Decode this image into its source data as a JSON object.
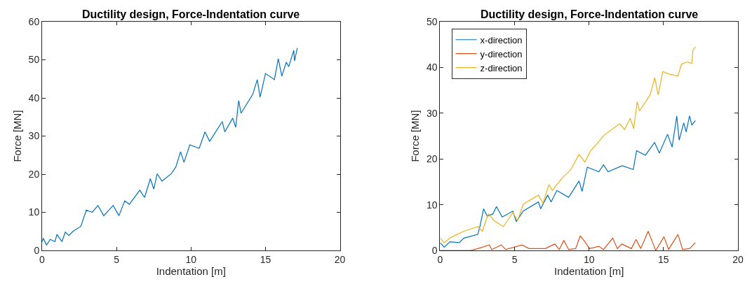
{
  "chart_data": [
    {
      "type": "line",
      "title": "Ductility design, Force-Indentation curve",
      "xlabel": "Indentation [m]",
      "ylabel": "Force [MN]",
      "xlim": [
        0,
        20
      ],
      "ylim": [
        0,
        60
      ],
      "xticks": [
        0,
        5,
        10,
        15,
        20
      ],
      "yticks": [
        0,
        10,
        20,
        30,
        40,
        50,
        60
      ],
      "legend": false,
      "series": [
        {
          "color": "#0072bd",
          "x": [
            0,
            0.08,
            0.3,
            0.55,
            0.86,
            1.0,
            1.33,
            1.56,
            1.8,
            2.1,
            2.6,
            2.97,
            3.36,
            3.75,
            4.14,
            4.77,
            5.16,
            5.55,
            5.86,
            6.56,
            6.88,
            7.27,
            7.5,
            7.73,
            8.05,
            8.67,
            8.98,
            9.3,
            9.53,
            9.92,
            10.55,
            10.94,
            11.25,
            12.1,
            12.27,
            12.8,
            13.0,
            13.2,
            13.36,
            14.14,
            14.45,
            14.64,
            15.0,
            15.6,
            15.86,
            16.1,
            16.4,
            16.56,
            16.9,
            16.95,
            17.14
          ],
          "values": [
            2.3,
            3.2,
            1.4,
            2.9,
            2.3,
            4.2,
            2.3,
            4.8,
            3.9,
            5.1,
            6.3,
            10.6,
            10.0,
            11.8,
            9.1,
            11.8,
            9.1,
            13.0,
            12.1,
            15.8,
            13.9,
            18.8,
            16.1,
            20.1,
            18.2,
            20.1,
            21.9,
            25.9,
            23.1,
            27.7,
            26.8,
            31.1,
            28.6,
            33.8,
            31.1,
            34.7,
            32.3,
            39.3,
            36.0,
            40.9,
            44.8,
            40.2,
            46.4,
            44.8,
            50.3,
            45.7,
            49.4,
            48.2,
            52.5,
            49.7,
            53.1
          ]
        }
      ]
    },
    {
      "type": "line",
      "title": "Ductility design, Force-Indentation curve",
      "xlabel": "Indentation [m]",
      "ylabel": "Force [MN]",
      "xlim": [
        0,
        20
      ],
      "ylim": [
        0,
        50
      ],
      "xticks": [
        0,
        5,
        10,
        15,
        20
      ],
      "yticks": [
        0,
        10,
        20,
        30,
        40,
        50
      ],
      "legend": "top left",
      "series": [
        {
          "name": "x-direction",
          "color": "#0072bd",
          "x": [
            0,
            0.27,
            0.66,
            1.28,
            1.6,
            2.53,
            2.69,
            2.92,
            3.16,
            3.55,
            3.78,
            4.17,
            4.88,
            5.11,
            5.58,
            6.6,
            6.75,
            7.22,
            7.45,
            7.84,
            8.63,
            9.33,
            9.53,
            9.88,
            10.66,
            10.97,
            11.28,
            12.22,
            12.97,
            13.19,
            13.78,
            14.4,
            14.72,
            15.27,
            15.58,
            15.89,
            16.05,
            16.36,
            16.52,
            16.75,
            16.9,
            17.14
          ],
          "values": [
            1.7,
            0.7,
            1.9,
            1.7,
            2.7,
            3.5,
            5.5,
            9.1,
            7.5,
            8.0,
            9.6,
            7.3,
            8.6,
            6.3,
            8.6,
            10.6,
            9.1,
            12.1,
            10.6,
            13.1,
            11.6,
            15.2,
            12.9,
            18.2,
            17.2,
            18.7,
            17.2,
            18.5,
            17.7,
            21.8,
            20.8,
            23.6,
            21.3,
            25.4,
            22.6,
            29.4,
            24.1,
            27.9,
            25.9,
            29.4,
            27.4,
            28.4
          ]
        },
        {
          "name": "y-direction",
          "color": "#d95319",
          "x": [
            0,
            2.06,
            2.53,
            3.3,
            3.47,
            4.1,
            4.41,
            5.5,
            5.97,
            7.06,
            7.7,
            8.0,
            8.31,
            8.63,
            9.1,
            9.41,
            9.72,
            10.03,
            10.66,
            10.97,
            11.59,
            11.9,
            12.2,
            12.84,
            13.16,
            13.47,
            13.97,
            14.33,
            14.48,
            15.03,
            15.34,
            15.97,
            16.28,
            16.75,
            17.14
          ],
          "values": [
            0,
            0,
            0.4,
            1.2,
            0.2,
            1.2,
            0.2,
            1.2,
            0.4,
            0.4,
            1.4,
            0.2,
            2.2,
            0.2,
            0.4,
            3.2,
            1.9,
            0.4,
            0.9,
            0.2,
            2.7,
            0.4,
            1.4,
            0.4,
            2.4,
            0.4,
            4.2,
            1.2,
            0,
            3.0,
            0.2,
            3.5,
            0.2,
            0.4,
            1.7
          ]
        },
        {
          "name": "z-direction",
          "color": "#edb120",
          "x": [
            0,
            0.27,
            0.66,
            1.13,
            1.6,
            2.53,
            2.84,
            3.23,
            3.63,
            4.25,
            4.88,
            5.2,
            5.58,
            6.6,
            6.91,
            7.3,
            7.53,
            8.16,
            8.78,
            9.33,
            9.72,
            10.11,
            10.66,
            10.97,
            12.06,
            12.38,
            12.77,
            13.0,
            13.23,
            13.39,
            14.1,
            14.41,
            14.64,
            14.95,
            15.34,
            15.97,
            16.2,
            16.59,
            16.9,
            16.97,
            17.14
          ],
          "values": [
            2.7,
            1.7,
            2.7,
            3.5,
            4.2,
            5.2,
            4.2,
            8.0,
            6.5,
            5.2,
            8.3,
            6.5,
            10.1,
            12.1,
            10.3,
            14.4,
            13.1,
            15.7,
            17.7,
            21.0,
            19.3,
            21.8,
            23.8,
            25.1,
            27.7,
            26.4,
            28.9,
            26.6,
            32.5,
            30.5,
            34.0,
            37.8,
            34.0,
            39.1,
            38.6,
            38.1,
            40.7,
            41.2,
            40.9,
            43.7,
            44.5
          ]
        }
      ]
    }
  ]
}
